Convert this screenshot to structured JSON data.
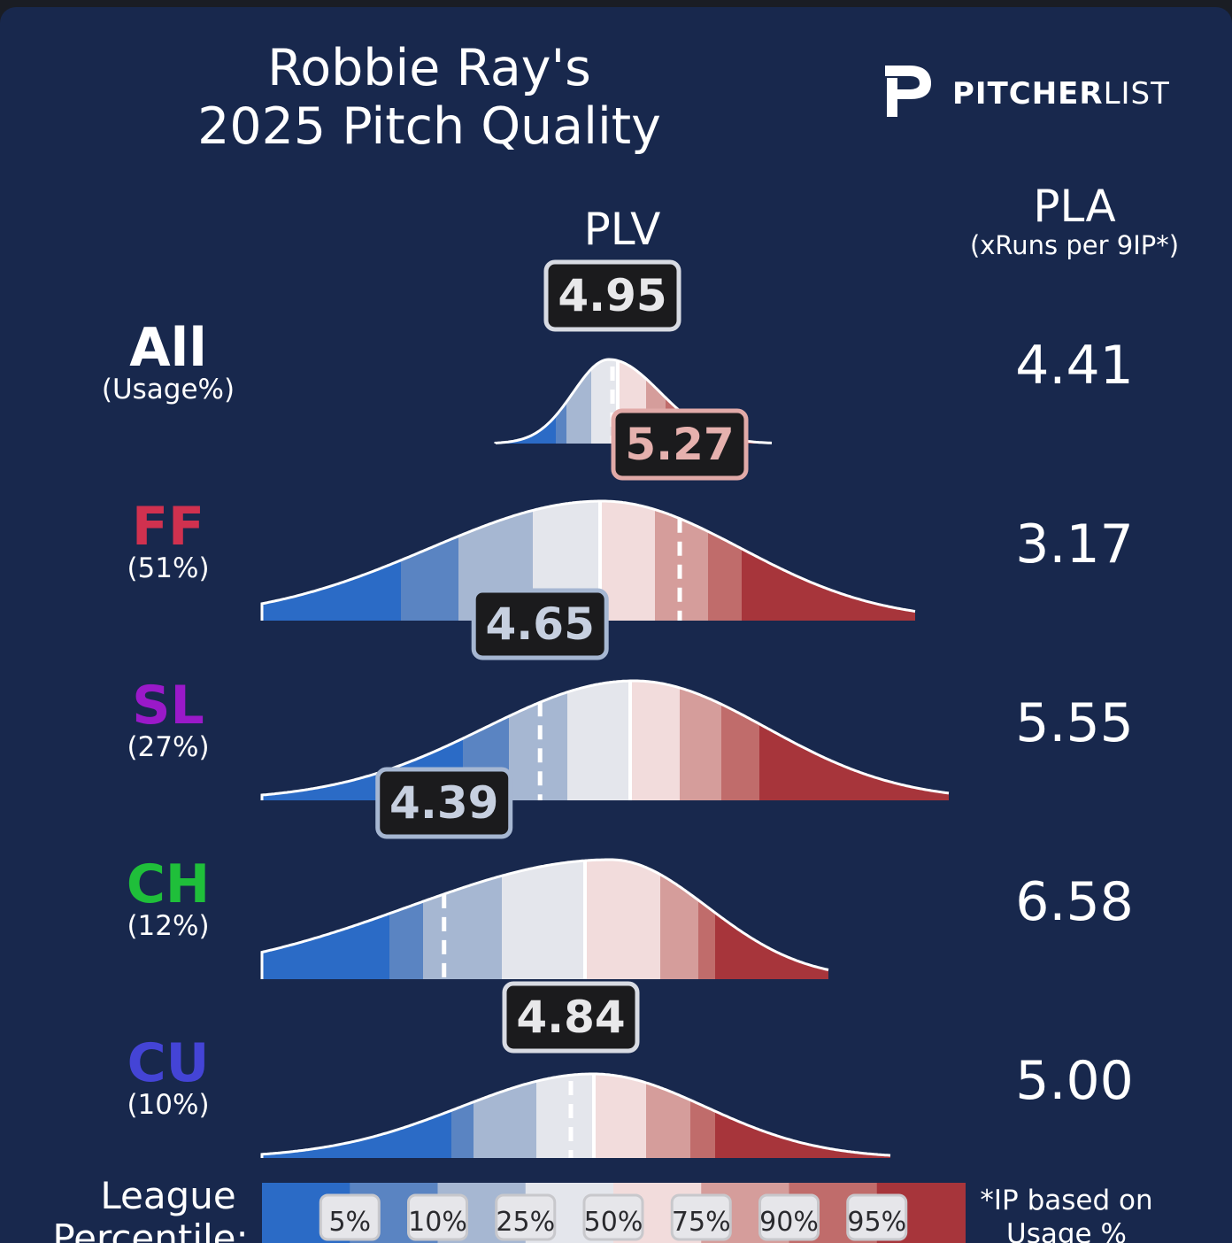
{
  "header": {
    "title_line1": "Robbie Ray's",
    "title_line2": "2025 Pitch Quality",
    "plv_header": "PLV",
    "pla_header": "PLA",
    "pla_subheader": "(xRuns per 9IP*)"
  },
  "logo": {
    "bold_text": "PITCHER",
    "light_text": "LIST"
  },
  "colors": {
    "background": "#18284d",
    "scale": [
      "#2b6bc6",
      "#5a84c2",
      "#a6b7d2",
      "#e4e6ec",
      "#f2dcdc",
      "#d59d9b",
      "#c06c6b",
      "#a7353b"
    ],
    "FF": "#d0314f",
    "SL": "#9a19c9",
    "CH": "#1fbf3a",
    "CU": "#4444d6"
  },
  "chart_data": {
    "type": "density",
    "x_unit": "PLV",
    "rows": [
      {
        "pitch": "All",
        "usage_label": "(Usage%)",
        "plv": "4.95",
        "pla": "4.41",
        "percentile": 45
      },
      {
        "pitch": "FF",
        "usage_label": "(51%)",
        "plv": "5.27",
        "pla": "3.17",
        "percentile": 82
      },
      {
        "pitch": "SL",
        "usage_label": "(27%)",
        "plv": "4.65",
        "pla": "5.55",
        "percentile": 18
      },
      {
        "pitch": "CH",
        "usage_label": "(12%)",
        "plv": "4.39",
        "pla": "6.58",
        "percentile": 14
      },
      {
        "pitch": "CU",
        "usage_label": "(10%)",
        "plv": "4.84",
        "pla": "5.00",
        "percentile": 40
      }
    ],
    "legend": {
      "title_line1": "League",
      "title_line2": "Percentile:",
      "ticks": [
        "5%",
        "10%",
        "25%",
        "50%",
        "75%",
        "90%",
        "95%"
      ]
    },
    "footnote_line1": "*IP based on",
    "footnote_line2": "Usage %"
  }
}
